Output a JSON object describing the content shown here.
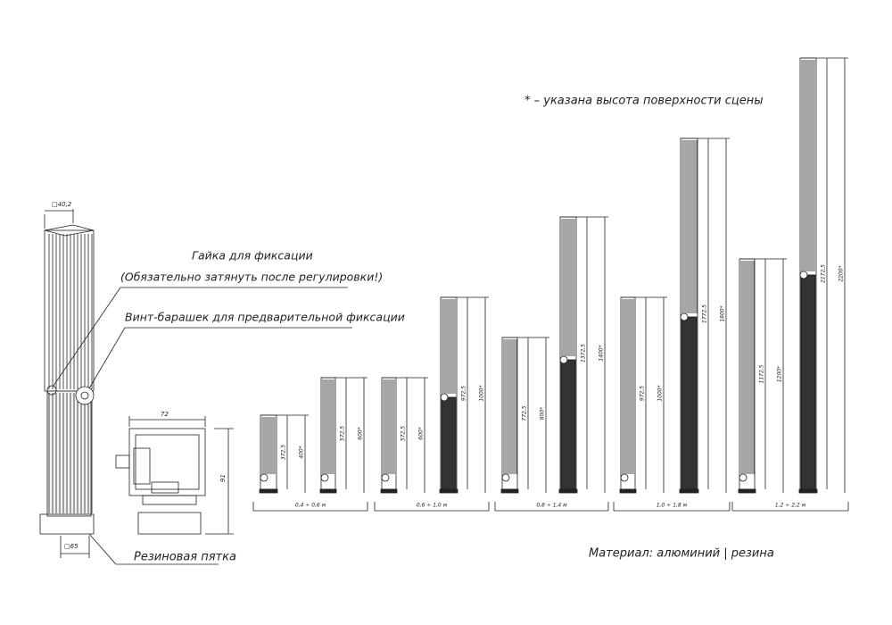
{
  "detail": {
    "size_top": "□40,2",
    "nut": "Гайка для фиксации",
    "nut_note": "(Обязательно затянуть после регулировки!)",
    "wing_screw": "Винт-барашек для предварительной фиксации",
    "width": "72",
    "height": "91",
    "size_bottom": "□65",
    "rubber_foot": "Резиновая пятка"
  },
  "note": "* – указана высота поверхности сцены",
  "groups": [
    {
      "range": "0,4 ÷ 0,6 м",
      "legs": [
        {
          "length": "372,5",
          "stage_height": "400*"
        },
        {
          "length": "572,5",
          "stage_height": "600*"
        }
      ]
    },
    {
      "range": "0,6 ÷ 1,0 м",
      "legs": [
        {
          "length": "572,5",
          "stage_height": "600*"
        },
        {
          "length": "972,5",
          "stage_height": "1000*"
        }
      ]
    },
    {
      "range": "0,8 ÷ 1,4 м",
      "legs": [
        {
          "length": "772,5",
          "stage_height": "800*"
        },
        {
          "length": "1372,5",
          "stage_height": "1400*"
        }
      ]
    },
    {
      "range": "1,0 ÷ 1,8 м",
      "legs": [
        {
          "length": "972,5",
          "stage_height": "1000*"
        },
        {
          "length": "1772,5",
          "stage_height": "1800*"
        }
      ]
    },
    {
      "range": "1,2 ÷ 2,2 м",
      "legs": [
        {
          "length": "1172,5",
          "stage_height": "1200*"
        },
        {
          "length": "2172,5",
          "stage_height": "2200*"
        }
      ]
    }
  ],
  "material": "Материал: алюминий | резина"
}
